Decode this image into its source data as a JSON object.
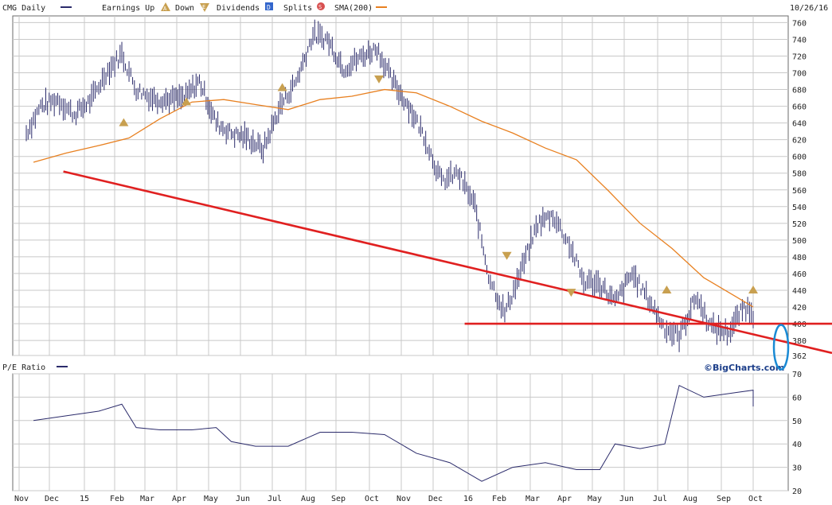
{
  "header": {
    "ticker_label": "CMG Daily",
    "earnings_up": "Earnings Up",
    "down": "Down",
    "dividends": "Dividends",
    "splits": "Splits",
    "sma": "SMA(200)",
    "date": "10/26/16",
    "icon_up": "A",
    "icon_down": "E",
    "icon_div": "D",
    "icon_split": "S"
  },
  "brand": "©BigCharts.com",
  "colors": {
    "price": "#2b2b6b",
    "sma": "#e88020",
    "trendline": "#e02020",
    "annotation_ellipse": "#1a8ad4",
    "earnings_marker": "#c8a050",
    "grid": "#c8c8c8",
    "frame": "#6b6b6b"
  },
  "chart_data": [
    {
      "type": "line",
      "title": "CMG Daily",
      "x_labels": [
        "Nov",
        "Dec",
        "15",
        "Feb",
        "Mar",
        "Apr",
        "May",
        "Jun",
        "Jul",
        "Aug",
        "Sep",
        "Oct",
        "Nov",
        "Dec",
        "16",
        "Feb",
        "Mar",
        "Apr",
        "May",
        "Jun",
        "Jul",
        "Aug",
        "Sep",
        "Oct"
      ],
      "y_ticks": [
        362,
        380,
        400,
        420,
        440,
        460,
        480,
        500,
        520,
        540,
        560,
        580,
        600,
        620,
        640,
        660,
        680,
        700,
        720,
        740,
        760
      ],
      "ylim": [
        362,
        768
      ],
      "grid": true,
      "legend_placement": "top",
      "series": [
        {
          "name": "CMG Daily",
          "style": "ohlc-bars",
          "x": [
            "Nov",
            "Nov",
            "Dec",
            "Dec",
            "15",
            "15",
            "Feb",
            "Feb",
            "Mar",
            "Mar",
            "Apr",
            "Apr",
            "May",
            "May",
            "Jun",
            "Jun",
            "Jul",
            "Jul",
            "Aug",
            "Aug",
            "Sep",
            "Sep",
            "Oct",
            "Oct",
            "Nov",
            "Nov",
            "Dec",
            "Dec",
            "16",
            "16",
            "Feb",
            "Feb",
            "Mar",
            "Mar",
            "Apr",
            "Apr",
            "May",
            "May",
            "Jun",
            "Jun",
            "Jul",
            "Jul",
            "Aug",
            "Aug",
            "Sep",
            "Sep",
            "Oct",
            "Oct"
          ],
          "values": [
            628,
            660,
            668,
            650,
            668,
            700,
            722,
            680,
            670,
            668,
            670,
            690,
            640,
            628,
            622,
            608,
            660,
            690,
            745,
            740,
            705,
            718,
            730,
            690,
            660,
            625,
            570,
            580,
            540,
            458,
            412,
            462,
            520,
            530,
            495,
            450,
            448,
            425,
            460,
            430,
            395,
            385,
            432,
            395,
            390,
            420,
            415,
            402
          ]
        },
        {
          "name": "SMA(200)",
          "style": "line",
          "x": [
            "Nov",
            "Dec",
            "15",
            "Feb",
            "Mar",
            "Apr",
            "May",
            "Jun",
            "Jul",
            "Aug",
            "Sep",
            "Oct",
            "Nov",
            "Dec",
            "16",
            "Feb",
            "Mar",
            "Apr",
            "May",
            "Jun",
            "Jul",
            "Aug",
            "Sep",
            "Oct"
          ],
          "values": [
            593,
            604,
            613,
            622,
            645,
            665,
            668,
            662,
            656,
            668,
            672,
            680,
            676,
            660,
            642,
            628,
            610,
            596,
            560,
            520,
            490,
            455,
            432,
            420
          ]
        }
      ],
      "annotations": {
        "descending_trendline": {
          "from": [
            "Dec",
            582
          ],
          "to": [
            "Oct",
            430
          ]
        },
        "support_line": {
          "value": 400,
          "from": "16",
          "to": "Oct"
        },
        "earnings_markers": [
          {
            "kind": "up",
            "x": "Feb",
            "value": 640
          },
          {
            "kind": "up",
            "x": "Apr",
            "value": 665
          },
          {
            "kind": "up",
            "x": "Jul",
            "value": 682
          },
          {
            "kind": "down",
            "x": "Oct",
            "value": 693
          },
          {
            "kind": "down",
            "x": "Feb",
            "value": 482
          },
          {
            "kind": "down",
            "x": "Apr",
            "value": 438
          },
          {
            "kind": "up",
            "x": "Jul",
            "value": 440
          },
          {
            "kind": "up",
            "x": "Oct",
            "value": 440
          }
        ],
        "highlight_ellipse_around_value": 372
      }
    },
    {
      "type": "line",
      "title": "P/E Ratio",
      "y_ticks": [
        20,
        30,
        40,
        50,
        60,
        70
      ],
      "ylim": [
        20,
        70
      ],
      "grid": true,
      "series": [
        {
          "name": "P/E Ratio",
          "x": [
            "Nov",
            "Dec",
            "15",
            "Feb",
            "Feb",
            "Mar",
            "Apr",
            "May",
            "May",
            "Jun",
            "Jul",
            "Aug",
            "Sep",
            "Oct",
            "Nov",
            "Dec",
            "16",
            "Feb",
            "Mar",
            "Apr",
            "May",
            "May",
            "Jun",
            "Jul",
            "Jul",
            "Aug",
            "Sep",
            "Oct",
            "Oct"
          ],
          "values": [
            50,
            52,
            54,
            57,
            47,
            46,
            46,
            47,
            41,
            39,
            39,
            45,
            45,
            44,
            36,
            32,
            24,
            30,
            32,
            29,
            29,
            40,
            38,
            40,
            65,
            60,
            62,
            63,
            56
          ]
        }
      ]
    }
  ]
}
